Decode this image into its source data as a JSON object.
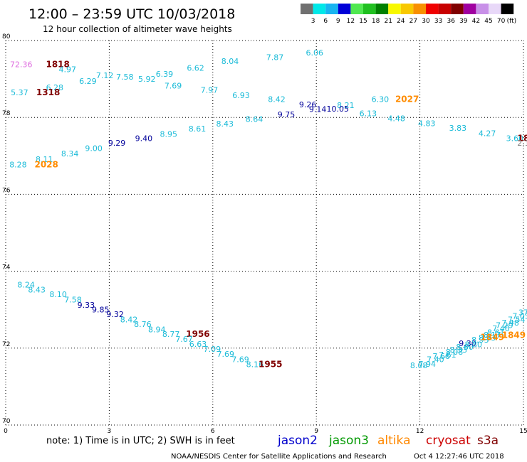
{
  "header": {
    "title": "12:00 – 23:59 UTC 10/03/2018",
    "subtitle": "12 hour collection of altimeter wave heights"
  },
  "colorbar": {
    "labels": [
      "3",
      "6",
      "9",
      "12",
      "15",
      "18",
      "21",
      "24",
      "27",
      "30",
      "33",
      "36",
      "39",
      "42",
      "45",
      "70"
    ],
    "unit": "(ft)",
    "colors": [
      "#707070",
      "#00e8e8",
      "#18b4f0",
      "#0000d8",
      "#50e850",
      "#20c020",
      "#008000",
      "#f8f800",
      "#f8c800",
      "#f89000",
      "#f00000",
      "#c80000",
      "#800000",
      "#a000a0",
      "#c890e8",
      "#e8d8f8",
      "#000000"
    ]
  },
  "chart_data": {
    "type": "scatter",
    "title": "12:00 – 23:59 UTC 10/03/2018",
    "subtitle": "12 hour collection of altimeter wave heights",
    "x_ticks": [
      "0",
      "3",
      "6",
      "9",
      "12",
      "15"
    ],
    "y_ticks": [
      "70",
      "72",
      "74",
      "76",
      "78",
      "80"
    ],
    "xlim": [
      0,
      15
    ],
    "ylim": [
      70,
      80
    ],
    "grid": true,
    "color_by_satellite": {
      "jason2": "#0000cc",
      "jason3": "#009900",
      "altika": "#ff8800",
      "cryosat": "#cc0000",
      "s3a": "#800000"
    },
    "color_by_height": {
      "cyan": "#1bbbd8",
      "blue": "#00009a",
      "orange": "#ff8c00",
      "dark-red": "#800000",
      "pink": "#e070e0",
      "gray": "#808080"
    },
    "points": [
      {
        "x": 0.45,
        "y": 79.31,
        "label": "72.36",
        "c": "pink"
      },
      {
        "x": 1.51,
        "y": 79.31,
        "label": "1818",
        "c": "dark-red",
        "pass": true
      },
      {
        "x": 1.79,
        "y": 79.18,
        "label": "4.97",
        "c": "cyan"
      },
      {
        "x": 2.87,
        "y": 79.02,
        "label": "7.12",
        "c": "cyan"
      },
      {
        "x": 3.45,
        "y": 78.98,
        "label": "7.58",
        "c": "cyan"
      },
      {
        "x": 4.09,
        "y": 78.93,
        "label": "5.92",
        "c": "cyan"
      },
      {
        "x": 4.6,
        "y": 79.06,
        "label": "6.39",
        "c": "cyan"
      },
      {
        "x": 5.5,
        "y": 79.21,
        "label": "6.62",
        "c": "cyan"
      },
      {
        "x": 6.5,
        "y": 79.39,
        "label": "8.04",
        "c": "cyan"
      },
      {
        "x": 7.8,
        "y": 79.49,
        "label": "7.87",
        "c": "cyan"
      },
      {
        "x": 8.95,
        "y": 79.61,
        "label": "6.06",
        "c": "cyan"
      },
      {
        "x": 2.38,
        "y": 78.87,
        "label": "6.29",
        "c": "cyan"
      },
      {
        "x": 1.42,
        "y": 78.71,
        "label": "6.28",
        "c": "cyan"
      },
      {
        "x": 0.4,
        "y": 78.58,
        "label": "5.37",
        "c": "cyan"
      },
      {
        "x": 1.23,
        "y": 78.58,
        "label": "1318",
        "c": "dark-red",
        "pass": true
      },
      {
        "x": 4.85,
        "y": 78.75,
        "label": "7.69",
        "c": "cyan"
      },
      {
        "x": 5.9,
        "y": 78.64,
        "label": "7.97",
        "c": "cyan"
      },
      {
        "x": 6.82,
        "y": 78.5,
        "label": "6.93",
        "c": "cyan"
      },
      {
        "x": 7.85,
        "y": 78.4,
        "label": "8.42",
        "c": "cyan"
      },
      {
        "x": 8.75,
        "y": 78.26,
        "label": "9.26",
        "c": "blue"
      },
      {
        "x": 9.85,
        "y": 78.24,
        "label": "8.21",
        "c": "cyan"
      },
      {
        "x": 10.85,
        "y": 78.4,
        "label": "6.30",
        "c": "cyan"
      },
      {
        "x": 11.63,
        "y": 78.4,
        "label": "2027",
        "c": "orange",
        "pass": true
      },
      {
        "x": 9.04,
        "y": 78.14,
        "label": "9.14",
        "c": "blue"
      },
      {
        "x": 9.62,
        "y": 78.15,
        "label": "10.05",
        "c": "blue"
      },
      {
        "x": 8.13,
        "y": 78.0,
        "label": "9.75",
        "c": "blue"
      },
      {
        "x": 10.5,
        "y": 78.03,
        "label": "6.13",
        "c": "cyan"
      },
      {
        "x": 11.32,
        "y": 77.9,
        "label": "4.48",
        "c": "cyan"
      },
      {
        "x": 12.2,
        "y": 77.77,
        "label": "4.83",
        "c": "cyan"
      },
      {
        "x": 13.1,
        "y": 77.65,
        "label": "3.83",
        "c": "cyan"
      },
      {
        "x": 13.95,
        "y": 77.51,
        "label": "4.27",
        "c": "cyan"
      },
      {
        "x": 14.75,
        "y": 77.38,
        "label": "3.60",
        "c": "cyan"
      },
      {
        "x": 15.0,
        "y": 77.38,
        "label": "18",
        "c": "dark-red",
        "pass": true
      },
      {
        "x": 15.0,
        "y": 77.26,
        "label": "2.1",
        "c": "gray"
      },
      {
        "x": 7.2,
        "y": 77.88,
        "label": "8.64",
        "c": "cyan"
      },
      {
        "x": 6.35,
        "y": 77.76,
        "label": "8.43",
        "c": "cyan"
      },
      {
        "x": 5.55,
        "y": 77.63,
        "label": "8.61",
        "c": "cyan"
      },
      {
        "x": 4.72,
        "y": 77.5,
        "label": "8.95",
        "c": "cyan"
      },
      {
        "x": 4.0,
        "y": 77.38,
        "label": "9.40",
        "c": "blue"
      },
      {
        "x": 3.22,
        "y": 77.26,
        "label": "9.29",
        "c": "blue"
      },
      {
        "x": 2.55,
        "y": 77.13,
        "label": "9.00",
        "c": "cyan"
      },
      {
        "x": 1.86,
        "y": 76.99,
        "label": "8.34",
        "c": "cyan"
      },
      {
        "x": 1.12,
        "y": 76.84,
        "label": "8.11",
        "c": "cyan"
      },
      {
        "x": 0.36,
        "y": 76.7,
        "label": "8.28",
        "c": "cyan"
      },
      {
        "x": 1.18,
        "y": 76.7,
        "label": "2028",
        "c": "orange",
        "pass": true
      },
      {
        "x": 0.59,
        "y": 73.58,
        "label": "8.24",
        "c": "cyan"
      },
      {
        "x": 0.9,
        "y": 73.45,
        "label": "8.43",
        "c": "cyan"
      },
      {
        "x": 1.52,
        "y": 73.33,
        "label": "8.10",
        "c": "cyan"
      },
      {
        "x": 1.95,
        "y": 73.19,
        "label": "7.58",
        "c": "cyan"
      },
      {
        "x": 2.33,
        "y": 73.05,
        "label": "9.33",
        "c": "blue"
      },
      {
        "x": 2.75,
        "y": 72.93,
        "label": "9.85",
        "c": "blue"
      },
      {
        "x": 3.17,
        "y": 72.81,
        "label": "9.32",
        "c": "blue"
      },
      {
        "x": 3.57,
        "y": 72.67,
        "label": "8.42",
        "c": "cyan"
      },
      {
        "x": 3.97,
        "y": 72.55,
        "label": "8.76",
        "c": "cyan"
      },
      {
        "x": 4.38,
        "y": 72.41,
        "label": "8.94",
        "c": "cyan"
      },
      {
        "x": 4.79,
        "y": 72.29,
        "label": "8.77",
        "c": "cyan"
      },
      {
        "x": 5.57,
        "y": 72.29,
        "label": "1956",
        "c": "dark-red",
        "pass": true
      },
      {
        "x": 5.17,
        "y": 72.16,
        "label": "7.67",
        "c": "cyan"
      },
      {
        "x": 5.57,
        "y": 72.03,
        "label": "6.63",
        "c": "cyan"
      },
      {
        "x": 5.98,
        "y": 71.9,
        "label": "7.09",
        "c": "cyan"
      },
      {
        "x": 6.37,
        "y": 71.77,
        "label": "7.69",
        "c": "cyan"
      },
      {
        "x": 6.8,
        "y": 71.64,
        "label": "7.69",
        "c": "cyan"
      },
      {
        "x": 7.22,
        "y": 71.51,
        "label": "8.16",
        "c": "cyan"
      },
      {
        "x": 7.67,
        "y": 71.51,
        "label": "1955",
        "c": "dark-red",
        "pass": true
      },
      {
        "x": 11.97,
        "y": 71.48,
        "label": "8.08",
        "c": "cyan"
      },
      {
        "x": 12.21,
        "y": 71.52,
        "label": "7.94",
        "c": "cyan"
      },
      {
        "x": 12.45,
        "y": 71.64,
        "label": "7.40",
        "c": "cyan"
      },
      {
        "x": 12.62,
        "y": 71.72,
        "label": "7.66",
        "c": "cyan"
      },
      {
        "x": 12.8,
        "y": 71.76,
        "label": "7.61",
        "c": "cyan"
      },
      {
        "x": 13.0,
        "y": 71.83,
        "label": "8.08",
        "c": "cyan"
      },
      {
        "x": 13.12,
        "y": 71.89,
        "label": "8.33",
        "c": "cyan"
      },
      {
        "x": 13.3,
        "y": 71.96,
        "label": "8.60",
        "c": "cyan"
      },
      {
        "x": 13.38,
        "y": 72.05,
        "label": "9.30",
        "c": "blue"
      },
      {
        "x": 13.55,
        "y": 72.02,
        "label": "8.80",
        "c": "cyan"
      },
      {
        "x": 13.75,
        "y": 72.14,
        "label": "8.93",
        "c": "cyan"
      },
      {
        "x": 13.95,
        "y": 72.2,
        "label": "8.93",
        "c": "cyan"
      },
      {
        "x": 14.1,
        "y": 72.27,
        "label": "8.17",
        "c": "cyan"
      },
      {
        "x": 14.2,
        "y": 72.34,
        "label": "8.61",
        "c": "cyan"
      },
      {
        "x": 14.35,
        "y": 72.44,
        "label": "7.40",
        "c": "cyan"
      },
      {
        "x": 14.45,
        "y": 72.52,
        "label": "7.29",
        "c": "cyan"
      },
      {
        "x": 14.62,
        "y": 72.59,
        "label": "7.48",
        "c": "cyan"
      },
      {
        "x": 14.8,
        "y": 72.67,
        "label": "7.54",
        "c": "cyan"
      },
      {
        "x": 14.93,
        "y": 72.76,
        "label": "7.03",
        "c": "cyan"
      },
      {
        "x": 15.0,
        "y": 72.86,
        "label": "37",
        "c": "cyan"
      },
      {
        "x": 14.1,
        "y": 72.21,
        "label": "1849",
        "c": "orange",
        "pass": true
      },
      {
        "x": 14.72,
        "y": 72.26,
        "label": "1849",
        "c": "orange",
        "pass": true
      }
    ]
  },
  "note": "note:  1) Time is in UTC;  2) SWH is in feet",
  "satellites": [
    {
      "name": "jason2",
      "color": "#0000cc"
    },
    {
      "name": "jason3",
      "color": "#009900"
    },
    {
      "name": "altika",
      "color": "#ff8800"
    },
    {
      "name": "cryosat",
      "color": "#cc0000"
    },
    {
      "name": "s3a",
      "color": "#800000"
    }
  ],
  "footer": {
    "credit": "NOAA/NESDIS Center for Satellite Applications and Research",
    "timestamp": "Oct  4 12:27:46 UTC 2018"
  }
}
